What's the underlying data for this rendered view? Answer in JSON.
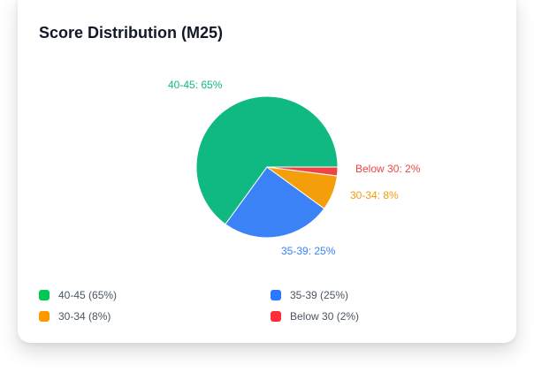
{
  "chart_data": {
    "type": "pie",
    "title": "Score Distribution (M25)",
    "slices": [
      {
        "label": "40-45",
        "value": 65,
        "color": "#10b981",
        "data_label": "40-45: 65%",
        "legend": "40-45 (65%)",
        "legend_color": "#00c853"
      },
      {
        "label": "35-39",
        "value": 25,
        "color": "#3b82f6",
        "data_label": "35-39: 25%",
        "legend": "35-39 (25%)",
        "legend_color": "#2979ff"
      },
      {
        "label": "30-34",
        "value": 8,
        "color": "#f59e0b",
        "data_label": "30-34: 8%",
        "legend": "30-34 (8%)",
        "legend_color": "#ff9800"
      },
      {
        "label": "Below 30",
        "value": 2,
        "color": "#ef4444",
        "data_label": "Below 30: 2%",
        "legend": "Below 30 (2%)",
        "legend_color": "#ff2d3a"
      }
    ],
    "legend_placement": "bottom"
  }
}
